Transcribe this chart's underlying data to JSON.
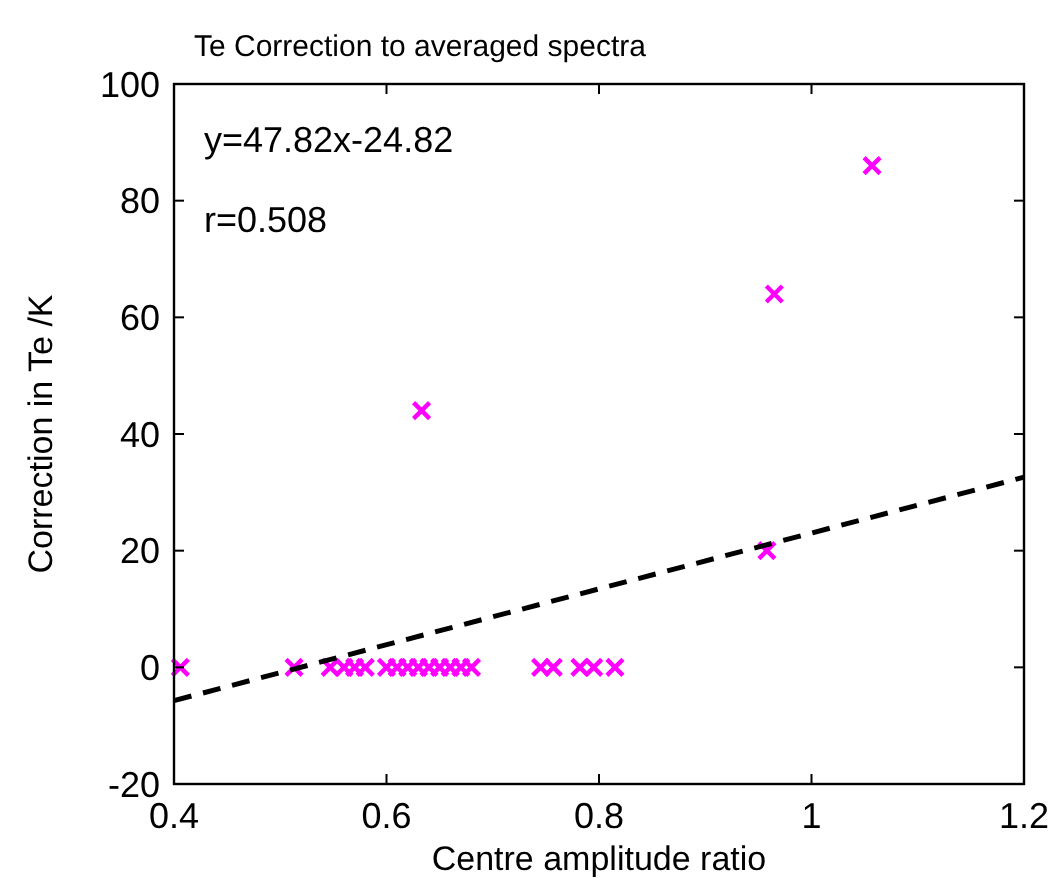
{
  "chart_data": {
    "type": "scatter",
    "title": "Te Correction to averaged spectra",
    "xlabel": "Centre amplitude ratio",
    "ylabel": "Correction in Te /K",
    "xlim": [
      0.4,
      1.2
    ],
    "ylim": [
      -20,
      100
    ],
    "xticks": [
      0.4,
      0.6,
      0.8,
      1,
      1.2
    ],
    "yticks": [
      -20,
      0,
      20,
      40,
      60,
      80,
      100
    ],
    "grid": false,
    "annotations": [
      "y=47.82x-24.82",
      "r=0.508"
    ],
    "series": [
      {
        "color": "#ff00ff",
        "marker": "cross",
        "x": [
          0.406,
          0.513,
          0.547,
          0.56,
          0.57,
          0.58,
          0.6,
          0.61,
          0.62,
          0.63,
          0.64,
          0.65,
          0.66,
          0.67,
          0.68,
          0.745,
          0.757,
          0.782,
          0.795,
          0.815,
          0.633,
          0.958,
          0.965,
          1.057
        ],
        "values": [
          0,
          0,
          0,
          0,
          0,
          0,
          0,
          0,
          0,
          0,
          0,
          0,
          0,
          0,
          0,
          0,
          0,
          0,
          0,
          0,
          44,
          20,
          64,
          86
        ]
      },
      {
        "type": "line",
        "color": "#000000",
        "line_style": "dashed",
        "marker": "none",
        "x": [
          0.4,
          1.2
        ],
        "values": [
          -5.7,
          32.6
        ]
      }
    ]
  }
}
